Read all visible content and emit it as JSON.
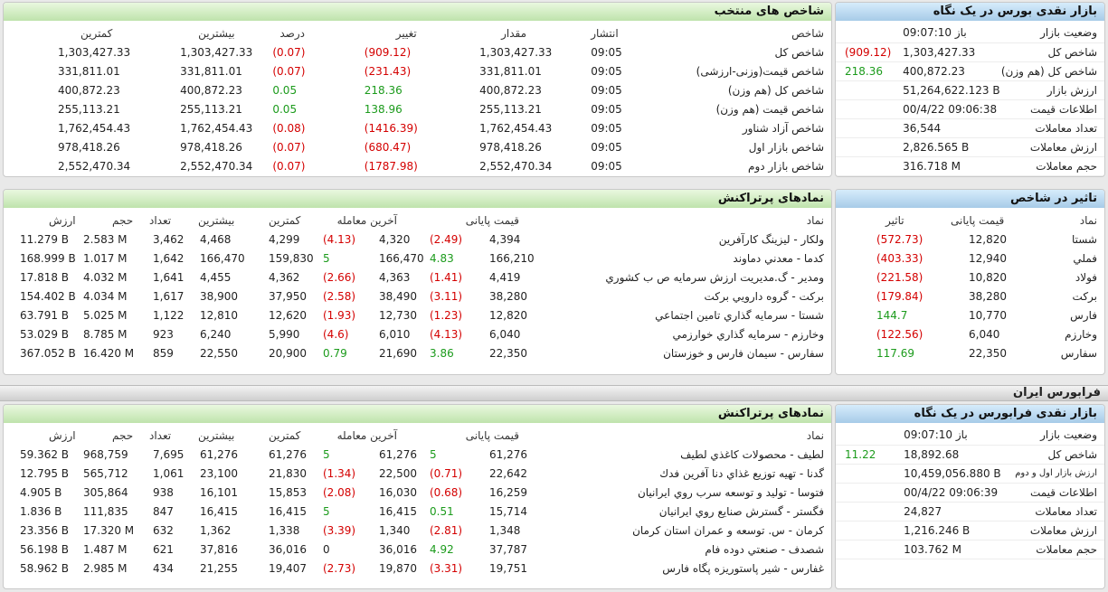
{
  "market_summary": {
    "title": "بازار نقدی بورس در یک نگاه",
    "rows": [
      {
        "label": "وضعیت بازار",
        "value": "باز 09:07:10",
        "change": ""
      },
      {
        "label": "شاخص کل",
        "value": "1,303,427.33",
        "change": "(909.12)",
        "dir": "neg"
      },
      {
        "label": "شاخص کل (هم وزن)",
        "value": "400,872.23",
        "change": "218.36",
        "dir": "pos"
      },
      {
        "label": "ارزش بازار",
        "value": "51,264,622.123 B",
        "change": ""
      },
      {
        "label": "اطلاعات قیمت",
        "value": "00/4/22 09:06:38",
        "change": ""
      },
      {
        "label": "تعداد معاملات",
        "value": "36,544",
        "change": ""
      },
      {
        "label": "ارزش معاملات",
        "value": "2,826.565 B",
        "change": ""
      },
      {
        "label": "حجم معاملات",
        "value": "316.718 M",
        "change": ""
      }
    ]
  },
  "selected_indices": {
    "title": "شاخص های منتخب",
    "headers": {
      "name": "شاخص",
      "time": "انتشار",
      "value": "مقدار",
      "change": "تغییر",
      "percent": "درصد",
      "high": "بیشترین",
      "low": "کمترین"
    },
    "rows": [
      {
        "name": "شاخص کل",
        "time": "09:05",
        "value": "1,303,427.33",
        "change": "(909.12)",
        "percent": "(0.07)",
        "high": "1,303,427.33",
        "low": "1,303,427.33",
        "dir": "neg"
      },
      {
        "name": "شاخص قیمت(وزنی-ارزشی)",
        "time": "09:05",
        "value": "331,811.01",
        "change": "(231.43)",
        "percent": "(0.07)",
        "high": "331,811.01",
        "low": "331,811.01",
        "dir": "neg"
      },
      {
        "name": "شاخص کل (هم وزن)",
        "time": "09:05",
        "value": "400,872.23",
        "change": "218.36",
        "percent": "0.05",
        "high": "400,872.23",
        "low": "400,872.23",
        "dir": "pos"
      },
      {
        "name": "شاخص قیمت (هم وزن)",
        "time": "09:05",
        "value": "255,113.21",
        "change": "138.96",
        "percent": "0.05",
        "high": "255,113.21",
        "low": "255,113.21",
        "dir": "pos"
      },
      {
        "name": "شاخص آزاد شناور",
        "time": "09:05",
        "value": "1,762,454.43",
        "change": "(1416.39)",
        "percent": "(0.08)",
        "high": "1,762,454.43",
        "low": "1,762,454.43",
        "dir": "neg"
      },
      {
        "name": "شاخص بازار اول",
        "time": "09:05",
        "value": "978,418.26",
        "change": "(680.47)",
        "percent": "(0.07)",
        "high": "978,418.26",
        "low": "978,418.26",
        "dir": "neg"
      },
      {
        "name": "شاخص بازار دوم",
        "time": "09:05",
        "value": "2,552,470.34",
        "change": "(1787.98)",
        "percent": "(0.07)",
        "high": "2,552,470.34",
        "low": "2,552,470.34",
        "dir": "neg"
      }
    ]
  },
  "index_impact": {
    "title": "تاثیر در شاخص",
    "headers": {
      "symbol": "نماد",
      "price": "قیمت پایانی",
      "impact": "تاثیر"
    },
    "rows": [
      {
        "symbol": "شستا",
        "price": "12,820",
        "impact": "(572.73)",
        "dir": "neg"
      },
      {
        "symbol": "فملي",
        "price": "12,940",
        "impact": "(403.33)",
        "dir": "neg"
      },
      {
        "symbol": "فولاد",
        "price": "10,820",
        "impact": "(221.58)",
        "dir": "neg"
      },
      {
        "symbol": "بركت",
        "price": "38,280",
        "impact": "(179.84)",
        "dir": "neg"
      },
      {
        "symbol": "فارس",
        "price": "10,770",
        "impact": "144.7",
        "dir": "pos"
      },
      {
        "symbol": "وخارزم",
        "price": "6,040",
        "impact": "(122.56)",
        "dir": "neg"
      },
      {
        "symbol": "سفارس",
        "price": "22,350",
        "impact": "117.69",
        "dir": "pos"
      }
    ]
  },
  "bourse_trending": {
    "title": "نمادهای پرتراکنش",
    "headers": {
      "symbol": "نماد",
      "close": "قیمت پایانی",
      "last": "آخرین معامله",
      "low": "کمترین",
      "high": "بیشترین",
      "count": "تعداد",
      "volume": "حجم",
      "value": "ارزش"
    },
    "rows": [
      {
        "symbol": "ولكار - ليزينگ كارآفرين",
        "close": "4,394",
        "close_chg": "(2.49)",
        "close_dir": "neg",
        "last": "4,320",
        "last_chg": "(4.13)",
        "last_dir": "neg",
        "low": "4,299",
        "high": "4,468",
        "count": "3,462",
        "volume": "2.583 M",
        "value": "11.279 B"
      },
      {
        "symbol": "كدما - معدني دماوند",
        "close": "166,210",
        "close_chg": "4.83",
        "close_dir": "pos",
        "last": "166,470",
        "last_chg": "5",
        "last_dir": "pos",
        "low": "159,830",
        "high": "166,470",
        "count": "1,642",
        "volume": "1.017 M",
        "value": "168.999 B"
      },
      {
        "symbol": "ومدير - گ.مديريت ارزش سرمايه ص ب كشوري",
        "close": "4,419",
        "close_chg": "(1.41)",
        "close_dir": "neg",
        "last": "4,363",
        "last_chg": "(2.66)",
        "last_dir": "neg",
        "low": "4,362",
        "high": "4,455",
        "count": "1,641",
        "volume": "4.032 M",
        "value": "17.818 B"
      },
      {
        "symbol": "بركت - گروه دارويي بركت",
        "close": "38,280",
        "close_chg": "(3.11)",
        "close_dir": "neg",
        "last": "38,490",
        "last_chg": "(2.58)",
        "last_dir": "neg",
        "low": "37,950",
        "high": "38,900",
        "count": "1,617",
        "volume": "4.034 M",
        "value": "154.402 B"
      },
      {
        "symbol": "شستا - سرمايه گذاري تامين اجتماعي",
        "close": "12,820",
        "close_chg": "(1.23)",
        "close_dir": "neg",
        "last": "12,730",
        "last_chg": "(1.93)",
        "last_dir": "neg",
        "low": "12,620",
        "high": "12,810",
        "count": "1,122",
        "volume": "5.025 M",
        "value": "63.791 B"
      },
      {
        "symbol": "وخارزم - سرمايه گذاري خوارزمي",
        "close": "6,040",
        "close_chg": "(4.13)",
        "close_dir": "neg",
        "last": "6,010",
        "last_chg": "(4.6)",
        "last_dir": "neg",
        "low": "5,990",
        "high": "6,240",
        "count": "923",
        "volume": "8.785 M",
        "value": "53.029 B"
      },
      {
        "symbol": "سفارس - سيمان فارس و خوزستان",
        "close": "22,350",
        "close_chg": "3.86",
        "close_dir": "pos",
        "last": "21,690",
        "last_chg": "0.79",
        "last_dir": "pos",
        "low": "20,900",
        "high": "22,550",
        "count": "859",
        "volume": "16.420 M",
        "value": "367.052 B"
      }
    ]
  },
  "farabourse_banner": "فرابورس ایران",
  "farabourse_summary": {
    "title": "بازار نقدی فرابورس در یک نگاه",
    "rows": [
      {
        "label": "وضعیت بازار",
        "value": "باز 09:07:10",
        "change": ""
      },
      {
        "label": "شاخص کل",
        "value": "18,892.68",
        "change": "11.22",
        "dir": "pos"
      },
      {
        "label": "ارزش بازار اول و دوم",
        "value": "10,459,056.880 B",
        "change": "",
        "small": true
      },
      {
        "label": "اطلاعات قیمت",
        "value": "00/4/22 09:06:39",
        "change": ""
      },
      {
        "label": "تعداد معاملات",
        "value": "24,827",
        "change": ""
      },
      {
        "label": "ارزش معاملات",
        "value": "1,216.246 B",
        "change": ""
      },
      {
        "label": "حجم معاملات",
        "value": "103.762 M",
        "change": ""
      }
    ]
  },
  "farabourse_trending": {
    "title": "نمادهای پرتراکنش",
    "headers": {
      "symbol": "نماد",
      "close": "قیمت پایانی",
      "last": "آخرین معامله",
      "low": "کمترین",
      "high": "بیشترین",
      "count": "تعداد",
      "volume": "حجم",
      "value": "ارزش"
    },
    "rows": [
      {
        "symbol": "لطيف - محصولات كاغذي لطيف",
        "close": "61,276",
        "close_chg": "5",
        "close_dir": "pos",
        "last": "61,276",
        "last_chg": "5",
        "last_dir": "pos",
        "low": "61,276",
        "high": "61,276",
        "count": "7,695",
        "volume": "968,759",
        "value": "59.362 B"
      },
      {
        "symbol": "گدنا - تهيه توزيع غذاي دنا آفرين فدك",
        "close": "22,642",
        "close_chg": "(0.71)",
        "close_dir": "neg",
        "last": "22,500",
        "last_chg": "(1.34)",
        "last_dir": "neg",
        "low": "21,830",
        "high": "23,100",
        "count": "1,061",
        "volume": "565,712",
        "value": "12.795 B"
      },
      {
        "symbol": "فتوسا - توليد و توسعه سرب روي ايرانيان",
        "close": "16,259",
        "close_chg": "(0.68)",
        "close_dir": "neg",
        "last": "16,030",
        "last_chg": "(2.08)",
        "last_dir": "neg",
        "low": "15,853",
        "high": "16,101",
        "count": "938",
        "volume": "305,864",
        "value": "4.905 B"
      },
      {
        "symbol": "فگستر - گسترش صنايع روي ايرانيان",
        "close": "15,714",
        "close_chg": "0.51",
        "close_dir": "pos",
        "last": "16,415",
        "last_chg": "5",
        "last_dir": "pos",
        "low": "16,415",
        "high": "16,415",
        "count": "847",
        "volume": "111,835",
        "value": "1.836 B"
      },
      {
        "symbol": "كرمان - س. توسعه و عمران استان كرمان",
        "close": "1,348",
        "close_chg": "(2.81)",
        "close_dir": "neg",
        "last": "1,340",
        "last_chg": "(3.39)",
        "last_dir": "neg",
        "low": "1,338",
        "high": "1,362",
        "count": "632",
        "volume": "17.320 M",
        "value": "23.356 B"
      },
      {
        "symbol": "شصدف - صنعتي دوده فام",
        "close": "37,787",
        "close_chg": "4.92",
        "close_dir": "pos",
        "last": "36,016",
        "last_chg": "0",
        "last_dir": "none",
        "low": "36,016",
        "high": "37,816",
        "count": "621",
        "volume": "1.487 M",
        "value": "56.198 B"
      },
      {
        "symbol": "غفارس - شير پاستوريزه پگاه فارس",
        "close": "19,751",
        "close_chg": "(3.31)",
        "close_dir": "neg",
        "last": "19,870",
        "last_chg": "(2.73)",
        "last_dir": "neg",
        "low": "19,407",
        "high": "21,255",
        "count": "434",
        "volume": "2.985 M",
        "value": "58.962 B"
      }
    ]
  }
}
